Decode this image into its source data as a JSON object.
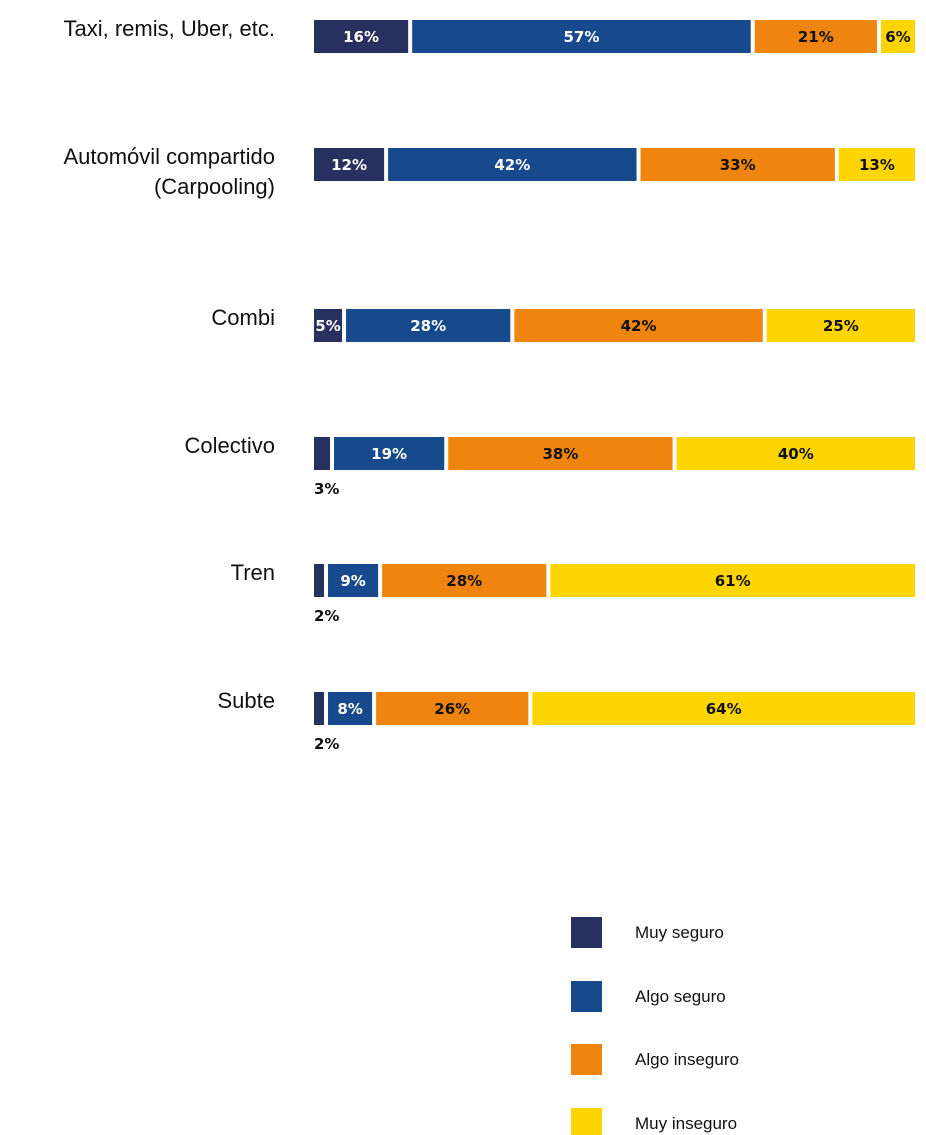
{
  "chart_data": {
    "type": "bar",
    "orientation": "horizontal",
    "stacked": true,
    "percent_stacked": true,
    "categories": [
      [
        "Taxi, remis, Uber, etc."
      ],
      [
        "Automóvil compartido",
        "(Carpooling)"
      ],
      [
        "Combi"
      ],
      [
        "Colectivo"
      ],
      [
        "Tren"
      ],
      [
        "Subte"
      ]
    ],
    "series": [
      {
        "name": "Muy seguro",
        "color": "#28305f",
        "values": [
          16,
          12,
          5,
          3,
          2,
          2
        ]
      },
      {
        "name": "Algo seguro",
        "color": "#164a8d",
        "values": [
          57,
          42,
          28,
          19,
          9,
          8
        ]
      },
      {
        "name": "Algo inseguro",
        "color": "#ef850e",
        "values": [
          21,
          33,
          42,
          38,
          28,
          26
        ]
      },
      {
        "name": "Muy inseguro",
        "color": "#ffd500",
        "values": [
          6,
          13,
          25,
          40,
          61,
          64
        ]
      }
    ],
    "label_suffix": "%",
    "legend_position": "bottom-right",
    "grid": false
  }
}
